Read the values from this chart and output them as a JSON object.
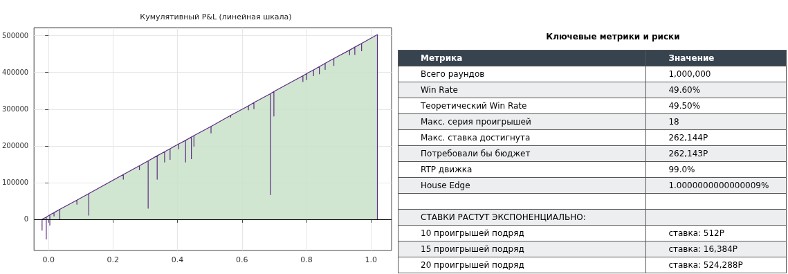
{
  "chart_data": [
    {
      "type": "area",
      "title": "Кумулятивный P&L (линейная шкала)",
      "xlim": [
        -0.045,
        1.064
      ],
      "ylim": [
        -85000,
        522000
      ],
      "xticks": [
        {
          "value": 0,
          "label": "0.0"
        },
        0.2,
        0.4,
        0.6,
        0.8,
        {
          "value": 1,
          "label": "1.0"
        }
      ],
      "yticks": [
        0,
        100000,
        200000,
        300000,
        400000,
        500000
      ],
      "grid": true,
      "marker": "none",
      "line_style": "solid",
      "ref_lines": [
        {
          "axis": "y",
          "value": 0,
          "color": "#000000"
        }
      ],
      "series": [
        {
          "color": "#5e2a84",
          "x": [
            -0.02,
            -0.02,
            -0.02,
            -0.007,
            -0.007,
            -0.007,
            0.004,
            0.004,
            0.004,
            0.017,
            0.017,
            0.017,
            0.035,
            0.035,
            0.035,
            0.088,
            0.088,
            0.088,
            0.125,
            0.125,
            0.125,
            0.232,
            0.232,
            0.232,
            0.282,
            0.282,
            0.282,
            0.309,
            0.309,
            0.309,
            0.337,
            0.337,
            0.337,
            0.36,
            0.36,
            0.36,
            0.377,
            0.377,
            0.377,
            0.403,
            0.403,
            0.403,
            0.425,
            0.425,
            0.425,
            0.443,
            0.443,
            0.443,
            0.451,
            0.451,
            0.451,
            0.504,
            0.504,
            0.504,
            0.565,
            0.565,
            0.565,
            0.62,
            0.62,
            0.62,
            0.637,
            0.637,
            0.637,
            0.688,
            0.688,
            0.688,
            0.699,
            0.699,
            0.699,
            0.789,
            0.789,
            0.789,
            0.801,
            0.801,
            0.801,
            0.822,
            0.822,
            0.822,
            0.84,
            0.84,
            0.84,
            0.858,
            0.858,
            0.858,
            0.885,
            0.885,
            0.885,
            0.934,
            0.934,
            0.934,
            0.95,
            0.95,
            0.95,
            0.971,
            0.971,
            0.971,
            1.02,
            1.02
          ],
          "values": [
            0,
            -30000,
            0,
            6000,
            -54000,
            6000,
            12000,
            -16000,
            12000,
            18000,
            9000,
            18000,
            27000,
            0,
            27000,
            52000,
            41000,
            52000,
            70000,
            11000,
            70000,
            122000,
            109000,
            122000,
            146000,
            135000,
            146000,
            159000,
            30000,
            159000,
            173000,
            109000,
            173000,
            184000,
            156000,
            184000,
            192000,
            163000,
            192000,
            205000,
            192000,
            205000,
            215000,
            156000,
            215000,
            224000,
            165000,
            224000,
            228000,
            199000,
            228000,
            253000,
            235000,
            253000,
            283000,
            278000,
            283000,
            309000,
            298000,
            309000,
            318000,
            301000,
            318000,
            342000,
            67000,
            342000,
            348000,
            281000,
            348000,
            391000,
            375000,
            391000,
            397000,
            380000,
            397000,
            407000,
            391000,
            407000,
            416000,
            396000,
            416000,
            425000,
            408000,
            425000,
            438000,
            419000,
            438000,
            461000,
            448000,
            461000,
            469000,
            449000,
            469000,
            479000,
            459000,
            479000,
            503000,
            0
          ]
        }
      ]
    },
    {
      "type": "other",
      "title": "Ключевые метрики и риски",
      "categories": [
        "Метрика",
        "Значение"
      ],
      "y_categories": [
        "Всего раундов",
        "Win Rate",
        "Теоретический Win Rate",
        "Макс. серия проигрышей",
        "Макс. ставка достигнута",
        "Потребовали бы бюджет",
        "RTP движка",
        "House Edge",
        null,
        "СТАВКИ РАСТУТ ЭКСПОНЕНЦИАЛЬНО:",
        "10 проигрышей подряд",
        "15 проигрышей подряд",
        "20 проигрышей подряд"
      ],
      "cell_labels": [
        [
          "1,000,000"
        ],
        [
          "49.60%"
        ],
        [
          "49.50%"
        ],
        [
          "18"
        ],
        [
          "262,144Р"
        ],
        [
          "262,143Р"
        ],
        [
          "99.0%"
        ],
        [
          "1.0000000000000009%"
        ],
        [
          null
        ],
        [
          null
        ],
        [
          "ставка: 512Р"
        ],
        [
          "ставка: 16,384Р"
        ],
        [
          "ставка: 524,288Р"
        ]
      ]
    }
  ]
}
